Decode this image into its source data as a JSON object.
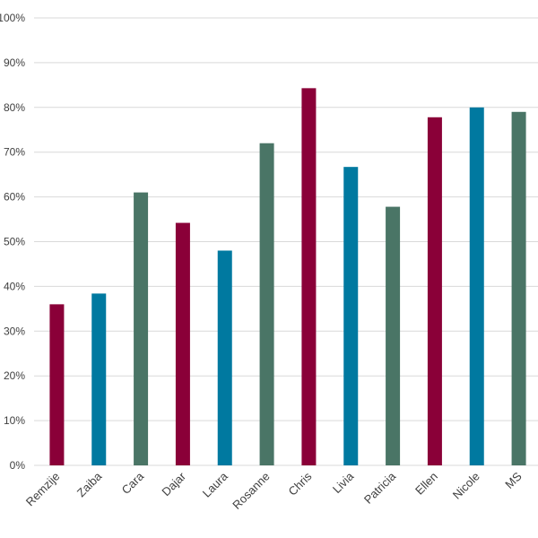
{
  "chart_data": {
    "type": "bar",
    "categories": [
      "Remzije",
      "Zaiba",
      "Cara",
      "Dajar",
      "Laura",
      "Rosanne",
      "Chris",
      "Livia",
      "Patricia",
      "Ellen",
      "Nicole",
      "MS"
    ],
    "values": [
      0.36,
      0.384,
      0.61,
      0.542,
      0.48,
      0.72,
      0.843,
      0.667,
      0.578,
      0.778,
      0.8,
      0.79
    ],
    "bar_colors": [
      "#8a0038",
      "#0079a0",
      "#4a7566",
      "#8a0038",
      "#0079a0",
      "#4a7566",
      "#8a0038",
      "#0079a0",
      "#4a7566",
      "#8a0038",
      "#0079a0",
      "#4a7566"
    ],
    "ylim": [
      0,
      1
    ],
    "yticks": [
      "0%",
      "10%",
      "20%",
      "30%",
      "40%",
      "50%",
      "60%",
      "70%",
      "80%",
      "90%",
      "100%"
    ],
    "grid": true,
    "title": "",
    "xlabel": "",
    "ylabel": ""
  }
}
